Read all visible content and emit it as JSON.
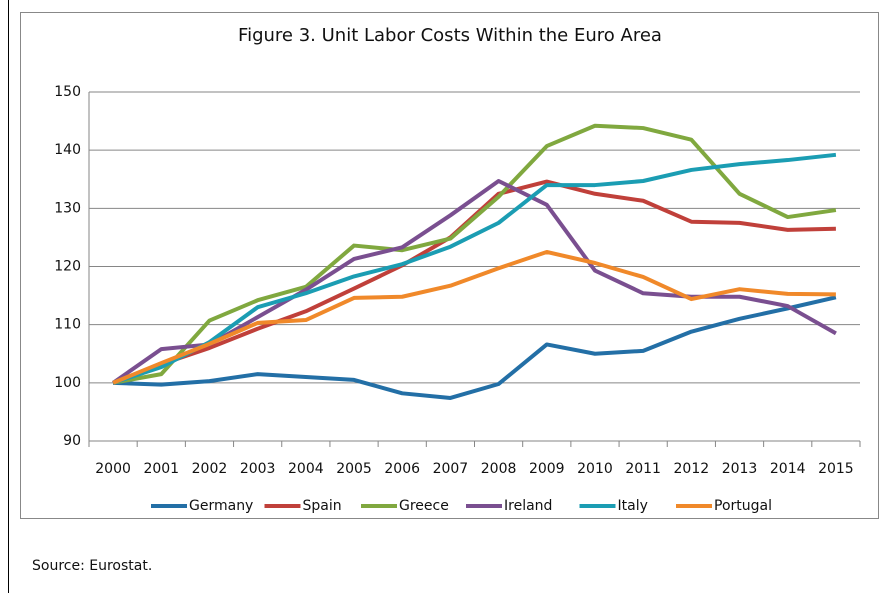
{
  "chart_data": {
    "type": "line",
    "title": "Figure 3. Unit Labor Costs Within the Euro Area",
    "categories": [
      "2000",
      "2001",
      "2002",
      "2003",
      "2004",
      "2005",
      "2006",
      "2007",
      "2008",
      "2009",
      "2010",
      "2011",
      "2012",
      "2013",
      "2014",
      "2015"
    ],
    "series": [
      {
        "name": "Germany",
        "color": "#236fa6",
        "values": [
          100,
          99.7,
          100.3,
          101.5,
          101,
          100.5,
          98.2,
          97.4,
          99.8,
          106.6,
          105,
          105.5,
          108.8,
          111,
          112.8,
          114.7
        ]
      },
      {
        "name": "Spain",
        "color": "#c0403a",
        "values": [
          100,
          103.2,
          106,
          109.3,
          112.3,
          116.2,
          120.2,
          125,
          132.5,
          134.6,
          132.5,
          131.3,
          127.7,
          127.5,
          126.3,
          126.5
        ]
      },
      {
        "name": "Greece",
        "color": "#80a83f",
        "values": [
          100,
          101.5,
          110.7,
          114.2,
          116.5,
          123.6,
          122.8,
          124.8,
          132,
          140.7,
          144.2,
          143.8,
          141.8,
          132.5,
          128.5,
          129.7
        ]
      },
      {
        "name": "Ireland",
        "color": "#7a4f90",
        "values": [
          100,
          105.8,
          106.6,
          111.3,
          116,
          121.3,
          123.3,
          128.8,
          134.7,
          130.6,
          119.3,
          115.4,
          114.8,
          114.8,
          113.2,
          108.5
        ]
      },
      {
        "name": "Italy",
        "color": "#1b9db3",
        "values": [
          100,
          102.7,
          107,
          113,
          115.4,
          118.3,
          120.4,
          123.4,
          127.5,
          134,
          134,
          134.7,
          136.6,
          137.6,
          138.3,
          139.2
        ]
      },
      {
        "name": "Portugal",
        "color": "#f0892a",
        "values": [
          100,
          103.4,
          106.7,
          110.3,
          110.8,
          114.6,
          114.8,
          116.7,
          119.7,
          122.5,
          120.6,
          118.2,
          114.4,
          116.1,
          115.3,
          115.2
        ]
      }
    ],
    "ylim": [
      90,
      150
    ],
    "yticks": [
      90,
      100,
      110,
      120,
      130,
      140,
      150
    ],
    "grid": true,
    "legend": "bottom",
    "source": "Source: Eurostat."
  }
}
